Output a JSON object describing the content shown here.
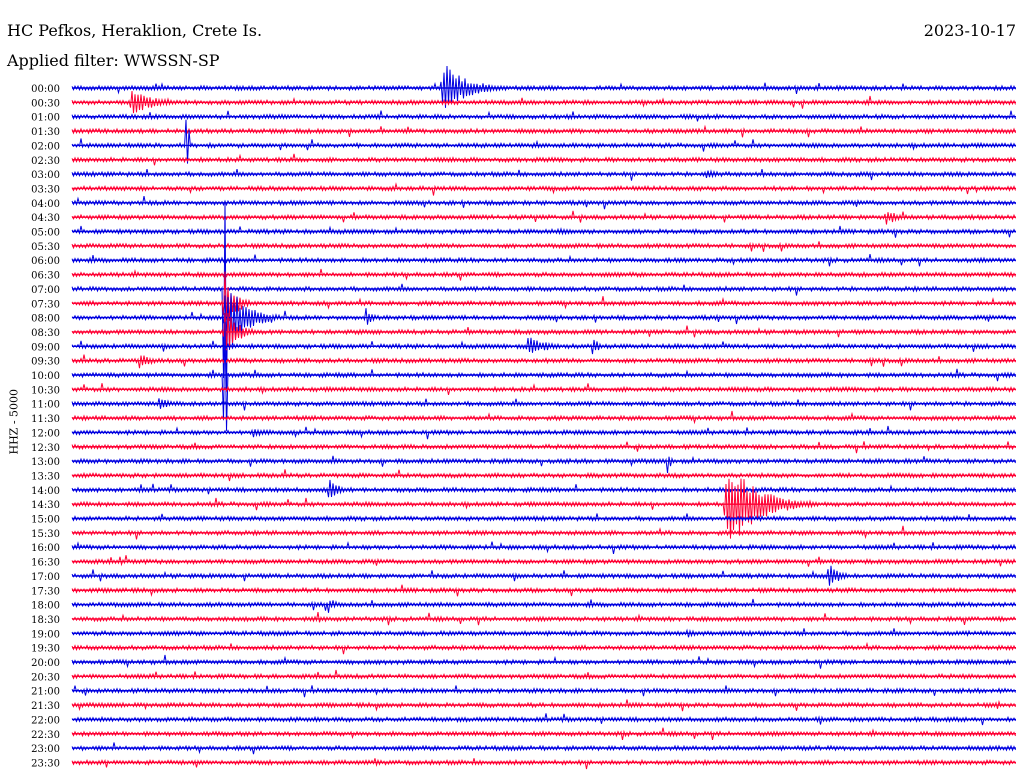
{
  "header": {
    "station": "HC Pefkos, Heraklion, Crete Is.",
    "date": "2023-10-17",
    "filter": "Applied filter: WWSSN-SP"
  },
  "channel_label": "HHZ - 5000",
  "colors": {
    "even_hour": "#0000e0",
    "odd_hour": "#ff0033"
  },
  "chart_data": {
    "type": "line",
    "title": "HC Pefkos, Heraklion, Crete Is.",
    "ylabel": "HHZ - 5000",
    "trace_colors": [
      "#0000e0",
      "#ff0033"
    ],
    "rows": [
      "00:00",
      "00:30",
      "01:00",
      "01:30",
      "02:00",
      "02:30",
      "03:00",
      "03:30",
      "04:00",
      "04:30",
      "05:00",
      "05:30",
      "06:00",
      "06:30",
      "07:00",
      "07:30",
      "08:00",
      "08:30",
      "09:00",
      "09:30",
      "10:00",
      "10:30",
      "11:00",
      "11:30",
      "12:00",
      "12:30",
      "13:00",
      "13:30",
      "14:00",
      "14:30",
      "15:00",
      "15:30",
      "16:00",
      "16:30",
      "17:00",
      "17:30",
      "18:00",
      "18:30",
      "19:00",
      "19:30",
      "20:00",
      "20:30",
      "21:00",
      "21:30",
      "22:00",
      "22:30",
      "23:00",
      "23:30"
    ],
    "events": [
      {
        "row": "00:00",
        "at": 0.39,
        "amp": 32,
        "dur": 0.07
      },
      {
        "row": "00:30",
        "at": 0.06,
        "amp": 15,
        "dur": 0.07
      },
      {
        "row": "02:00",
        "at": 0.12,
        "amp": 26,
        "dur": 0.005
      },
      {
        "row": "03:00",
        "at": 0.67,
        "amp": 7,
        "dur": 0.03
      },
      {
        "row": "03:00",
        "at": 0.73,
        "amp": 8,
        "dur": 0.01
      },
      {
        "row": "04:30",
        "at": 0.86,
        "amp": 10,
        "dur": 0.04
      },
      {
        "row": "05:00",
        "at": 0.51,
        "amp": 4,
        "dur": 0.08
      },
      {
        "row": "06:00",
        "at": 0.63,
        "amp": 4,
        "dur": 0.02
      },
      {
        "row": "07:00",
        "at": 0.16,
        "amp": 130,
        "dur": 0.005
      },
      {
        "row": "07:30",
        "at": 0.16,
        "amp": 45,
        "dur": 0.03
      },
      {
        "row": "08:00",
        "at": 0.16,
        "amp": 48,
        "dur": 0.06
      },
      {
        "row": "08:00",
        "at": 0.31,
        "amp": 12,
        "dur": 0.02
      },
      {
        "row": "08:30",
        "at": 0.16,
        "amp": 30,
        "dur": 0.04
      },
      {
        "row": "09:00",
        "at": 0.48,
        "amp": 12,
        "dur": 0.06
      },
      {
        "row": "09:00",
        "at": 0.55,
        "amp": 12,
        "dur": 0.02
      },
      {
        "row": "09:30",
        "at": 0.07,
        "amp": 12,
        "dur": 0.03
      },
      {
        "row": "10:00",
        "at": 0.16,
        "amp": 60,
        "dur": 0.005
      },
      {
        "row": "11:00",
        "at": 0.09,
        "amp": 9,
        "dur": 0.03
      },
      {
        "row": "12:00",
        "at": 0.19,
        "amp": 8,
        "dur": 0.03
      },
      {
        "row": "13:00",
        "at": 0.63,
        "amp": 18,
        "dur": 0.01
      },
      {
        "row": "14:00",
        "at": 0.27,
        "amp": 14,
        "dur": 0.03
      },
      {
        "row": "14:30",
        "at": 0.69,
        "amp": 50,
        "dur": 0.1
      },
      {
        "row": "16:30",
        "at": 0.05,
        "amp": 8,
        "dur": 0.01
      },
      {
        "row": "17:00",
        "at": 0.8,
        "amp": 18,
        "dur": 0.03
      },
      {
        "row": "18:00",
        "at": 0.27,
        "amp": 12,
        "dur": 0.02
      },
      {
        "row": "18:30",
        "at": 0.26,
        "amp": 9,
        "dur": 0.01
      },
      {
        "row": "19:00",
        "at": 0.65,
        "amp": 6,
        "dur": 0.03
      },
      {
        "row": "21:30",
        "at": 0.98,
        "amp": 6,
        "dur": 0.01
      },
      {
        "row": "23:30",
        "at": 0.32,
        "amp": 8,
        "dur": 0.01
      }
    ]
  }
}
